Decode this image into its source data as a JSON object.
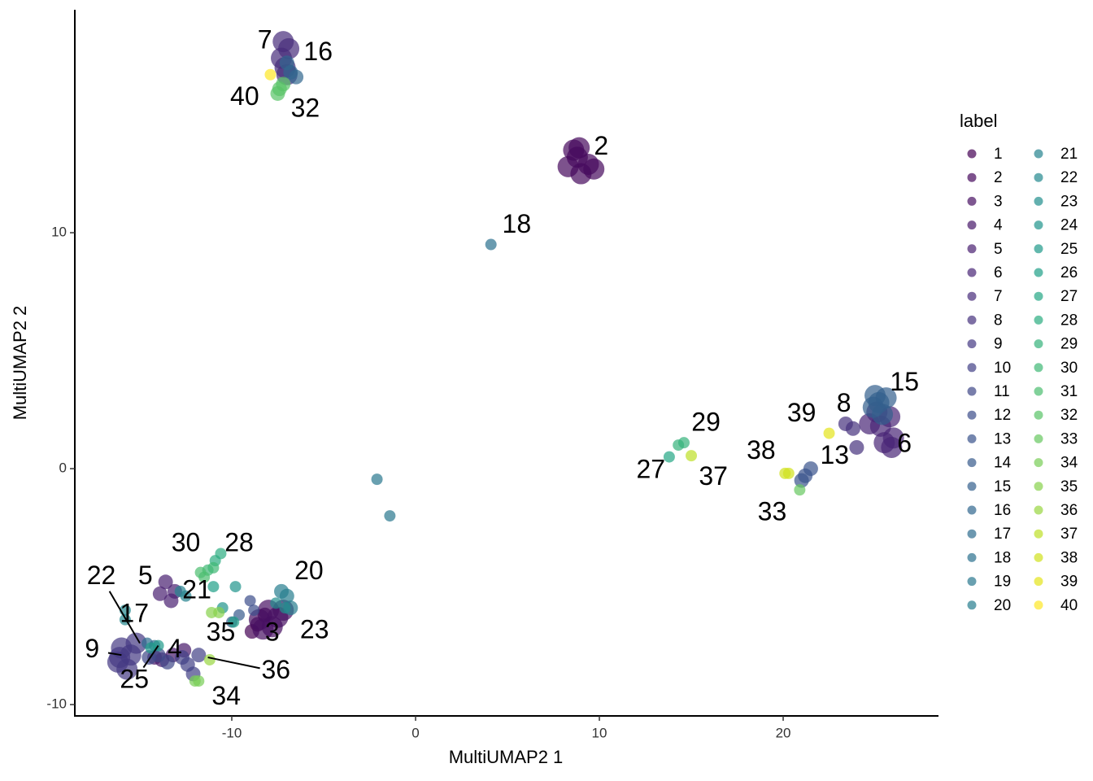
{
  "chart_data": {
    "type": "scatter",
    "x_label": "MultiUMAP2 1",
    "y_label": "MultiUMAP2 2",
    "legend_title": "label",
    "legend": "right",
    "opacity": 0.7,
    "xlim": [
      -18.54,
      28.45
    ],
    "ylim": [
      -10.48,
      19.45
    ],
    "xticks": [
      -10,
      0,
      10,
      20
    ],
    "yticks": [
      -10,
      0,
      10
    ],
    "series": [
      {
        "name": "1",
        "color": "#440154",
        "x": [
          -8.6,
          -8.2,
          -8.9
        ],
        "y": [
          -6.6,
          -6.2,
          -6.9
        ]
      },
      {
        "name": "2",
        "color": "#46085c",
        "x": [
          8.3,
          8.8,
          9.4,
          9.0,
          8.6,
          9.7,
          8.9
        ],
        "y": [
          12.8,
          13.2,
          12.9,
          12.5,
          13.5,
          12.7,
          13.6
        ]
      },
      {
        "name": "3",
        "color": "#471063",
        "x": [
          -8.0,
          -7.5,
          -7.8,
          -8.5,
          -7.2,
          -8.3
        ],
        "y": [
          -6.0,
          -6.3,
          -6.7,
          -6.4,
          -6.0,
          -6.8
        ]
      },
      {
        "name": "4",
        "color": "#47186a",
        "x": [
          -13.2,
          -13.8,
          -12.6,
          -14.2
        ],
        "y": [
          -7.9,
          -8.1,
          -7.7,
          -8.0
        ]
      },
      {
        "name": "5",
        "color": "#481f70",
        "x": [
          -13.6,
          -13.1,
          -13.9,
          -13.3
        ],
        "y": [
          -4.8,
          -5.2,
          -5.3,
          -5.6
        ]
      },
      {
        "name": "6",
        "color": "#482576",
        "x": [
          25.3,
          25.8,
          26.0,
          25.5,
          25.1,
          24.7,
          25.9
        ],
        "y": [
          1.8,
          2.2,
          1.3,
          1.1,
          2.4,
          1.9,
          0.9
        ]
      },
      {
        "name": "7",
        "color": "#472c7a",
        "x": [
          -7.3,
          -6.9,
          -7.1,
          -7.0,
          -7.2
        ],
        "y": [
          17.4,
          17.8,
          17.0,
          16.7,
          18.1
        ]
      },
      {
        "name": "8",
        "color": "#46327e",
        "x": [
          23.4,
          24.0,
          23.8
        ],
        "y": [
          1.9,
          0.9,
          1.7
        ]
      },
      {
        "name": "9",
        "color": "#443983",
        "x": [
          -16.0,
          -15.5,
          -16.2,
          -15.7,
          -15.2,
          -16.1
        ],
        "y": [
          -7.6,
          -7.9,
          -8.2,
          -8.5,
          -7.4,
          -8.0
        ]
      },
      {
        "name": "10",
        "color": "#424086",
        "x": [
          -12.4,
          -12.1,
          -12.7,
          -11.8
        ],
        "y": [
          -8.3,
          -8.7,
          -8.0,
          -7.9
        ]
      },
      {
        "name": "11",
        "color": "#3f4788",
        "x": [
          -14.0,
          -13.5,
          -14.5
        ],
        "y": [
          -7.9,
          -8.2,
          -8.0
        ]
      },
      {
        "name": "12",
        "color": "#3c4d8a",
        "x": [
          -9.0,
          -8.8
        ],
        "y": [
          -5.6,
          -6.0
        ]
      },
      {
        "name": "13",
        "color": "#39538b",
        "x": [
          21.2,
          21.5,
          21.0
        ],
        "y": [
          -0.3,
          0.0,
          -0.5
        ]
      },
      {
        "name": "14",
        "color": "#365a8c",
        "x": [
          -10.0,
          -9.6
        ],
        "y": [
          -6.5,
          -6.2
        ]
      },
      {
        "name": "15",
        "color": "#33608d",
        "x": [
          25.2,
          25.6,
          24.9,
          25.4,
          25.0
        ],
        "y": [
          2.8,
          3.0,
          2.6,
          2.3,
          3.1
        ]
      },
      {
        "name": "16",
        "color": "#30668e",
        "x": [
          -6.8,
          -6.5,
          -7.0
        ],
        "y": [
          16.8,
          16.6,
          17.2
        ]
      },
      {
        "name": "17",
        "color": "#2e6c8e",
        "x": [
          -14.6,
          -14.2
        ],
        "y": [
          -7.4,
          -7.5
        ]
      },
      {
        "name": "18",
        "color": "#2b718e",
        "x": [
          4.1
        ],
        "y": [
          9.5
        ]
      },
      {
        "name": "19",
        "color": "#29778e",
        "x": [
          -2.1,
          -1.4
        ],
        "y": [
          -0.45,
          -2.0
        ]
      },
      {
        "name": "20",
        "color": "#277d8e",
        "x": [
          -7.3,
          -7.0,
          -6.8
        ],
        "y": [
          -5.2,
          -5.4,
          -5.9
        ]
      },
      {
        "name": "21",
        "color": "#25838e",
        "x": [
          -12.8,
          -12.5
        ],
        "y": [
          -5.2,
          -5.4
        ]
      },
      {
        "name": "22",
        "color": "#23898e",
        "x": [
          -15.8,
          -15.8
        ],
        "y": [
          -6.0,
          -6.4
        ]
      },
      {
        "name": "23",
        "color": "#218e8d",
        "x": [
          -7.1,
          -7.6
        ],
        "y": [
          -5.9,
          -5.7
        ]
      },
      {
        "name": "24",
        "color": "#1f948c",
        "x": [
          -10.5,
          -9.8
        ],
        "y": [
          -5.9,
          -5.0
        ]
      },
      {
        "name": "25",
        "color": "#1f9a8a",
        "x": [
          -14.4,
          -14.0
        ],
        "y": [
          -7.6,
          -7.5
        ]
      },
      {
        "name": "26",
        "color": "#20a087",
        "x": [
          -11.0,
          -9.9
        ],
        "y": [
          -5.0,
          -6.5
        ]
      },
      {
        "name": "27",
        "color": "#24a684",
        "x": [
          13.8
        ],
        "y": [
          0.5
        ]
      },
      {
        "name": "28",
        "color": "#2bac80",
        "x": [
          -10.9,
          -10.6
        ],
        "y": [
          -3.9,
          -3.6
        ]
      },
      {
        "name": "29",
        "color": "#34b27b",
        "x": [
          14.3,
          14.6
        ],
        "y": [
          1.0,
          1.1
        ]
      },
      {
        "name": "30",
        "color": "#3fb875",
        "x": [
          -11.3,
          -11.0
        ],
        "y": [
          -4.3,
          -4.2
        ]
      },
      {
        "name": "31",
        "color": "#4bbd6f",
        "x": [
          -11.5,
          -11.7
        ],
        "y": [
          -4.6,
          -4.4
        ]
      },
      {
        "name": "32",
        "color": "#59c367",
        "x": [
          -7.4,
          -7.2,
          -7.5
        ],
        "y": [
          16.1,
          16.3,
          15.9
        ]
      },
      {
        "name": "33",
        "color": "#67c85f",
        "x": [
          20.9
        ],
        "y": [
          -0.9
        ]
      },
      {
        "name": "34",
        "color": "#77cd56",
        "x": [
          -11.8,
          -12.0
        ],
        "y": [
          -9.0,
          -9.0
        ]
      },
      {
        "name": "35",
        "color": "#87d24c",
        "x": [
          -11.1,
          -10.7
        ],
        "y": [
          -6.1,
          -6.1
        ]
      },
      {
        "name": "36",
        "color": "#98d640",
        "x": [
          -11.2
        ],
        "y": [
          -8.1
        ]
      },
      {
        "name": "37",
        "color": "#bddf26",
        "x": [
          15.0
        ],
        "y": [
          0.55
        ]
      },
      {
        "name": "38",
        "color": "#d0e11c",
        "x": [
          20.3,
          20.1
        ],
        "y": [
          -0.2,
          -0.2
        ]
      },
      {
        "name": "39",
        "color": "#e4e419",
        "x": [
          22.5
        ],
        "y": [
          1.5
        ]
      },
      {
        "name": "40",
        "color": "#fde725",
        "x": [
          -7.9
        ],
        "y": [
          16.7
        ]
      }
    ],
    "annotations": [
      {
        "text": "7",
        "x": -8.2,
        "y": 18.1
      },
      {
        "text": "16",
        "x": -5.3,
        "y": 17.6
      },
      {
        "text": "40",
        "x": -9.3,
        "y": 15.7
      },
      {
        "text": "32",
        "x": -6.0,
        "y": 15.2
      },
      {
        "text": "2",
        "x": 10.1,
        "y": 13.6
      },
      {
        "text": "18",
        "x": 5.5,
        "y": 10.3
      },
      {
        "text": "15",
        "x": 26.6,
        "y": 3.6
      },
      {
        "text": "8",
        "x": 23.3,
        "y": 2.7
      },
      {
        "text": "39",
        "x": 21.0,
        "y": 2.3
      },
      {
        "text": "6",
        "x": 26.6,
        "y": 1.0
      },
      {
        "text": "13",
        "x": 22.8,
        "y": 0.5
      },
      {
        "text": "38",
        "x": 18.8,
        "y": 0.7
      },
      {
        "text": "29",
        "x": 15.8,
        "y": 1.9
      },
      {
        "text": "27",
        "x": 12.8,
        "y": -0.1
      },
      {
        "text": "37",
        "x": 16.2,
        "y": -0.4
      },
      {
        "text": "33",
        "x": 19.4,
        "y": -1.9
      },
      {
        "text": "30",
        "x": -12.5,
        "y": -3.2
      },
      {
        "text": "28",
        "x": -9.6,
        "y": -3.2
      },
      {
        "text": "22",
        "x": -17.1,
        "y": -4.6,
        "arrow": {
          "x": -15.0,
          "y": -7.4
        }
      },
      {
        "text": "5",
        "x": -14.7,
        "y": -4.6
      },
      {
        "text": "21",
        "x": -11.9,
        "y": -5.2
      },
      {
        "text": "20",
        "x": -5.8,
        "y": -4.4
      },
      {
        "text": "17",
        "x": -15.3,
        "y": -6.2
      },
      {
        "text": "35",
        "x": -10.6,
        "y": -7.0
      },
      {
        "text": "3",
        "x": -7.8,
        "y": -7.0
      },
      {
        "text": "23",
        "x": -5.5,
        "y": -6.9
      },
      {
        "text": "9",
        "x": -17.6,
        "y": -7.7,
        "arrow": {
          "x": -16.0,
          "y": -7.9
        }
      },
      {
        "text": "4",
        "x": -13.1,
        "y": -7.7
      },
      {
        "text": "25",
        "x": -15.3,
        "y": -9.0,
        "arrow": {
          "x": -14.0,
          "y": -7.5
        }
      },
      {
        "text": "36",
        "x": -7.6,
        "y": -8.6,
        "arrow": {
          "x": -11.3,
          "y": -8.0
        }
      },
      {
        "text": "34",
        "x": -10.3,
        "y": -9.7
      }
    ]
  }
}
